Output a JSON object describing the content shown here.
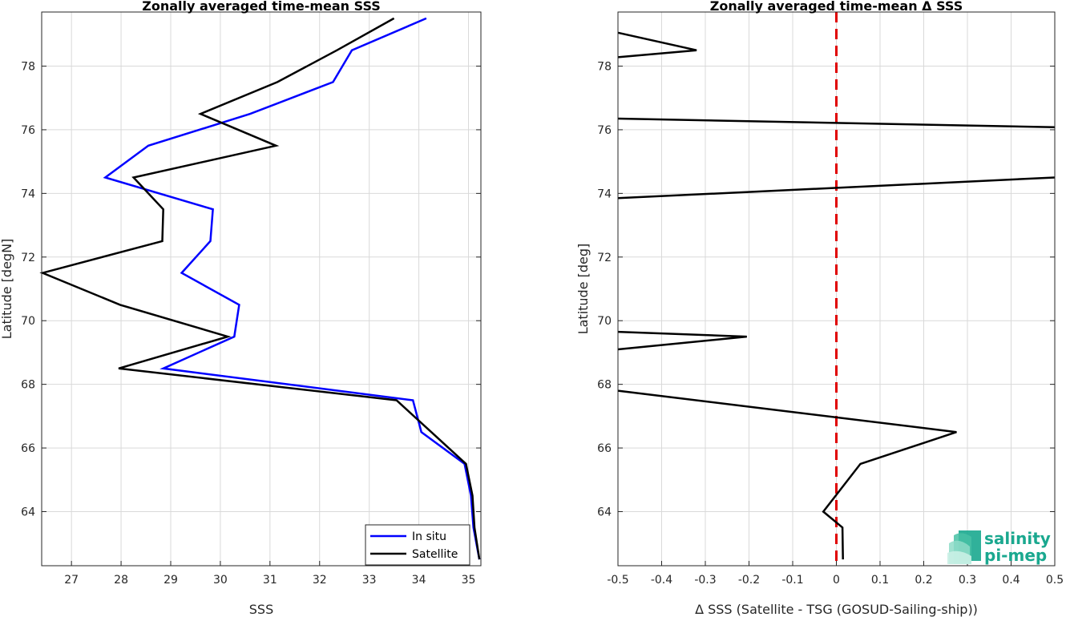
{
  "colors": {
    "in_situ": "#0000ff",
    "satellite": "#000000",
    "zero_line": "#e00000",
    "grid": "#d9d9d9",
    "logo": "#1aa88f"
  },
  "logo": {
    "line1": "salinity",
    "line2": "pi-mep"
  },
  "chart_data": [
    {
      "type": "line",
      "title": "Zonally averaged time-mean SSS",
      "xlabel": "SSS",
      "ylabel": "Latitude [degN]",
      "xlim": [
        26.4,
        35.25
      ],
      "ylim": [
        62.3,
        79.7
      ],
      "x_ticks": [
        27,
        28,
        29,
        30,
        31,
        32,
        33,
        34,
        35
      ],
      "y_ticks": [
        64,
        66,
        68,
        70,
        72,
        74,
        76,
        78
      ],
      "grid": true,
      "legend_position": "bottom-right",
      "series": [
        {
          "name": "In situ",
          "color": "#0000ff",
          "points": [
            [
              35.22,
              62.5
            ],
            [
              35.1,
              63.5
            ],
            [
              35.05,
              64.5
            ],
            [
              34.92,
              65.5
            ],
            [
              34.05,
              66.5
            ],
            [
              33.88,
              67.5
            ],
            [
              28.85,
              68.5
            ],
            [
              30.28,
              69.5
            ],
            [
              30.38,
              70.5
            ],
            [
              29.22,
              71.5
            ],
            [
              29.8,
              72.5
            ],
            [
              29.85,
              73.5
            ],
            [
              27.68,
              74.5
            ],
            [
              28.55,
              75.5
            ],
            [
              30.6,
              76.5
            ],
            [
              32.27,
              77.5
            ],
            [
              32.65,
              78.5
            ],
            [
              34.15,
              79.5
            ]
          ]
        },
        {
          "name": "Satellite",
          "color": "#000000",
          "points": [
            [
              35.22,
              62.5
            ],
            [
              35.12,
              63.5
            ],
            [
              35.08,
              64.5
            ],
            [
              34.95,
              65.5
            ],
            [
              34.25,
              66.5
            ],
            [
              33.55,
              67.5
            ],
            [
              27.95,
              68.5
            ],
            [
              30.15,
              69.5
            ],
            [
              27.98,
              70.5
            ],
            [
              26.42,
              71.5
            ],
            [
              28.83,
              72.5
            ],
            [
              28.85,
              73.5
            ],
            [
              28.25,
              74.5
            ],
            [
              31.12,
              75.5
            ],
            [
              29.6,
              76.5
            ],
            [
              31.15,
              77.5
            ],
            [
              32.35,
              78.5
            ],
            [
              33.5,
              79.5
            ]
          ]
        }
      ]
    },
    {
      "type": "line",
      "title": "Zonally averaged time-mean Δ SSS",
      "xlabel": "Δ SSS (Satellite - TSG (GOSUD-Sailing-ship))",
      "ylabel": "Latitude [deg]",
      "xlim": [
        -0.5,
        0.5
      ],
      "ylim": [
        62.3,
        79.7
      ],
      "x_ticks": [
        -0.5,
        -0.4,
        -0.3,
        -0.2,
        -0.1,
        0,
        0.1,
        0.2,
        0.3,
        0.4,
        0.5
      ],
      "y_ticks": [
        64,
        66,
        68,
        70,
        72,
        74,
        76,
        78
      ],
      "grid": true,
      "reference_line_x": 0,
      "series": [
        {
          "color": "#000000",
          "points": [
            [
              0.015,
              62.5
            ],
            [
              0.014,
              63.5
            ],
            [
              -0.03,
              64.0
            ],
            [
              0.055,
              65.5
            ],
            [
              0.275,
              66.5
            ],
            [
              -0.5,
              67.8
            ]
          ]
        },
        {
          "color": "#000000",
          "points": [
            [
              -0.5,
              69.1
            ],
            [
              -0.205,
              69.5
            ],
            [
              -0.5,
              69.65
            ]
          ]
        },
        {
          "color": "#000000",
          "points": [
            [
              -0.5,
              73.85
            ],
            [
              0.5,
              74.5
            ]
          ]
        },
        {
          "color": "#000000",
          "points": [
            [
              0.5,
              76.08
            ],
            [
              -0.5,
              76.35
            ]
          ]
        },
        {
          "color": "#000000",
          "points": [
            [
              -0.5,
              78.28
            ],
            [
              -0.32,
              78.5
            ],
            [
              -0.5,
              79.05
            ]
          ]
        }
      ]
    }
  ]
}
